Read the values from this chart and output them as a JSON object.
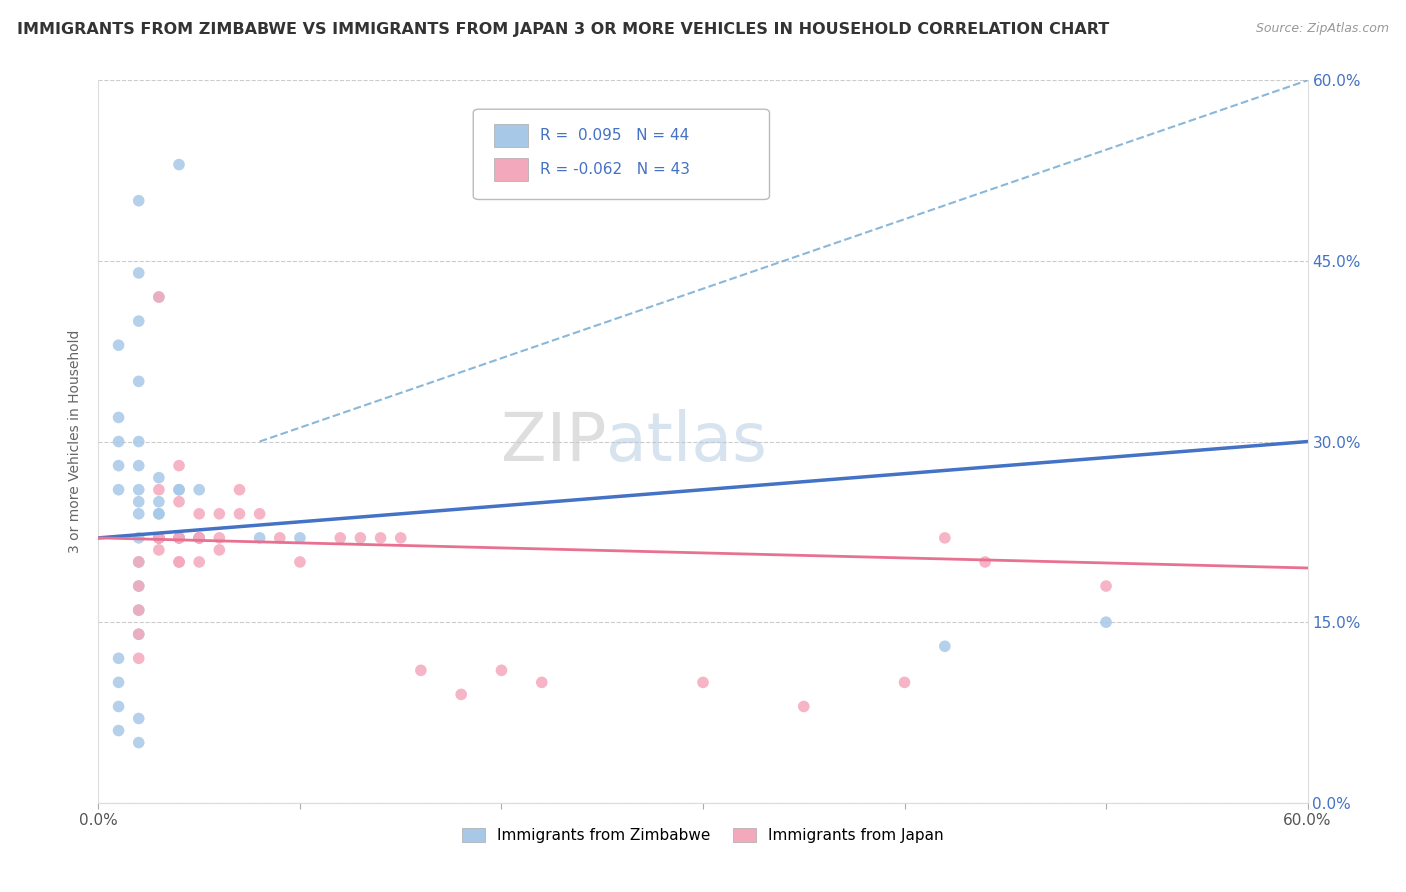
{
  "title": "IMMIGRANTS FROM ZIMBABWE VS IMMIGRANTS FROM JAPAN 3 OR MORE VEHICLES IN HOUSEHOLD CORRELATION CHART",
  "source_text": "Source: ZipAtlas.com",
  "ylabel": "3 or more Vehicles in Household",
  "legend_label1": "Immigrants from Zimbabwe",
  "legend_label2": "Immigrants from Japan",
  "r1": 0.095,
  "n1": 44,
  "r2": -0.062,
  "n2": 43,
  "xlim": [
    0.0,
    0.6
  ],
  "ylim": [
    0.0,
    0.6
  ],
  "yticks": [
    0.0,
    0.15,
    0.3,
    0.45,
    0.6
  ],
  "xticks": [
    0.0,
    0.1,
    0.2,
    0.3,
    0.4,
    0.5,
    0.6
  ],
  "xtick_labels_bottom": [
    "0.0%",
    "",
    "",
    "",
    "",
    "",
    "60.0%"
  ],
  "ytick_labels": [
    "0.0%",
    "15.0%",
    "30.0%",
    "45.0%",
    "60.0%"
  ],
  "color1": "#A8C8E8",
  "color2": "#F4A8BC",
  "line_color1": "#4472C4",
  "line_color2": "#E87090",
  "dash_color": "#7EB0D4",
  "background_color": "#FFFFFF",
  "watermark_zip": "ZIP",
  "watermark_atlas": "atlas",
  "scatter1_x": [
    0.02,
    0.04,
    0.02,
    0.03,
    0.02,
    0.01,
    0.02,
    0.01,
    0.01,
    0.01,
    0.02,
    0.02,
    0.02,
    0.01,
    0.03,
    0.02,
    0.03,
    0.02,
    0.03,
    0.04,
    0.03,
    0.05,
    0.04,
    0.04,
    0.05,
    0.02,
    0.02,
    0.02,
    0.02,
    0.01,
    0.01,
    0.01,
    0.01,
    0.02,
    0.02,
    0.03,
    0.04,
    0.05,
    0.08,
    0.1,
    0.42,
    0.5,
    0.02,
    0.03
  ],
  "scatter1_y": [
    0.5,
    0.53,
    0.44,
    0.42,
    0.4,
    0.38,
    0.35,
    0.32,
    0.3,
    0.28,
    0.26,
    0.28,
    0.3,
    0.26,
    0.27,
    0.25,
    0.25,
    0.24,
    0.22,
    0.22,
    0.24,
    0.22,
    0.22,
    0.26,
    0.22,
    0.2,
    0.18,
    0.16,
    0.14,
    0.12,
    0.1,
    0.08,
    0.06,
    0.05,
    0.22,
    0.24,
    0.26,
    0.26,
    0.22,
    0.22,
    0.13,
    0.15,
    0.07,
    0.22
  ],
  "scatter2_x": [
    0.03,
    0.04,
    0.03,
    0.04,
    0.05,
    0.04,
    0.06,
    0.05,
    0.06,
    0.07,
    0.05,
    0.04,
    0.03,
    0.03,
    0.02,
    0.02,
    0.02,
    0.02,
    0.02,
    0.03,
    0.03,
    0.04,
    0.04,
    0.05,
    0.06,
    0.07,
    0.08,
    0.09,
    0.1,
    0.12,
    0.13,
    0.14,
    0.15,
    0.16,
    0.18,
    0.2,
    0.22,
    0.44,
    0.5,
    0.42,
    0.3,
    0.4,
    0.35
  ],
  "scatter2_y": [
    0.42,
    0.28,
    0.26,
    0.25,
    0.24,
    0.22,
    0.21,
    0.2,
    0.22,
    0.24,
    0.22,
    0.2,
    0.21,
    0.22,
    0.2,
    0.18,
    0.16,
    0.14,
    0.12,
    0.22,
    0.22,
    0.22,
    0.2,
    0.22,
    0.24,
    0.26,
    0.24,
    0.22,
    0.2,
    0.22,
    0.22,
    0.22,
    0.22,
    0.11,
    0.09,
    0.11,
    0.1,
    0.2,
    0.18,
    0.22,
    0.1,
    0.1,
    0.08
  ],
  "blue_line_x0": 0.0,
  "blue_line_y0": 0.22,
  "blue_line_x1": 0.6,
  "blue_line_y1": 0.3,
  "pink_line_x0": 0.0,
  "pink_line_y0": 0.22,
  "pink_line_x1": 0.6,
  "pink_line_y1": 0.195,
  "dash_line_x0": 0.08,
  "dash_line_y0": 0.3,
  "dash_line_x1": 0.6,
  "dash_line_y1": 0.6
}
